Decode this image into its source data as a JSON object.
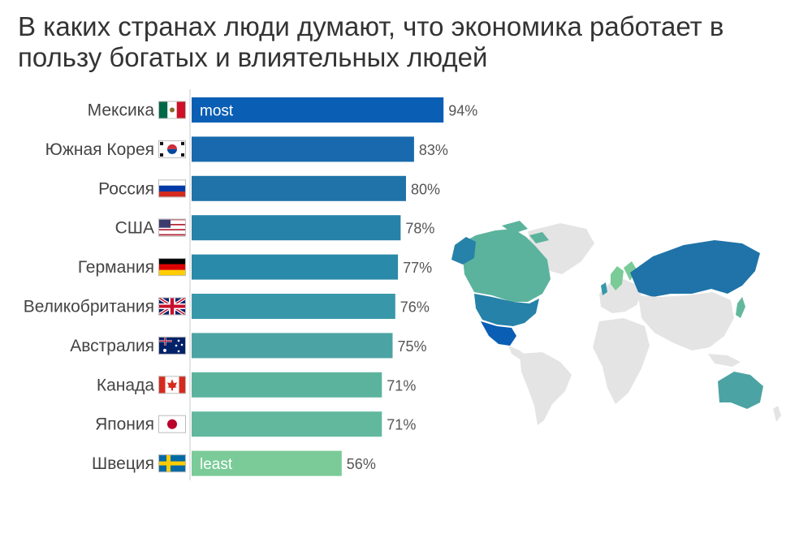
{
  "title": "В каких странах люди думают, что экономика работает в пользу богатых и влиятельных людей",
  "chart_data": {
    "type": "bar",
    "orientation": "horizontal",
    "title": "В каких странах люди думают, что экономика работает в пользу богатых и влиятельных людей",
    "categories": [
      "Мексика",
      "Южная Корея",
      "Россия",
      "США",
      "Германия",
      "Великобритания",
      "Австралия",
      "Канада",
      "Япония",
      "Швеция"
    ],
    "values": [
      94,
      83,
      80,
      78,
      77,
      76,
      75,
      71,
      71,
      56
    ],
    "value_labels": [
      "94%",
      "83%",
      "80%",
      "78%",
      "77%",
      "76%",
      "75%",
      "71%",
      "71%",
      "56%"
    ],
    "bar_colors": [
      "#0a5eb4",
      "#1869ad",
      "#1f73a8",
      "#2682a8",
      "#2a8aa9",
      "#3898a9",
      "#4ca3a4",
      "#5bb39d",
      "#62b89d",
      "#7acb98"
    ],
    "flags": [
      "mexico-flag",
      "south-korea-flag",
      "russia-flag",
      "usa-flag",
      "germany-flag",
      "uk-flag",
      "australia-flag",
      "canada-flag",
      "japan-flag",
      "sweden-flag"
    ],
    "inbar_labels": {
      "first": "most",
      "last": "least"
    },
    "xlim": [
      0,
      100
    ],
    "grid": false,
    "legend": "none"
  },
  "map": {
    "name": "world-map",
    "colors": {
      "mexico": "#0a5eb4",
      "usa": "#2682a8",
      "canada": "#5bb39d",
      "russia": "#1f73a8",
      "australia": "#4ca3a4",
      "japan": "#62b89d",
      "sweden": "#7acb98",
      "other": "#e6e6e6"
    }
  }
}
